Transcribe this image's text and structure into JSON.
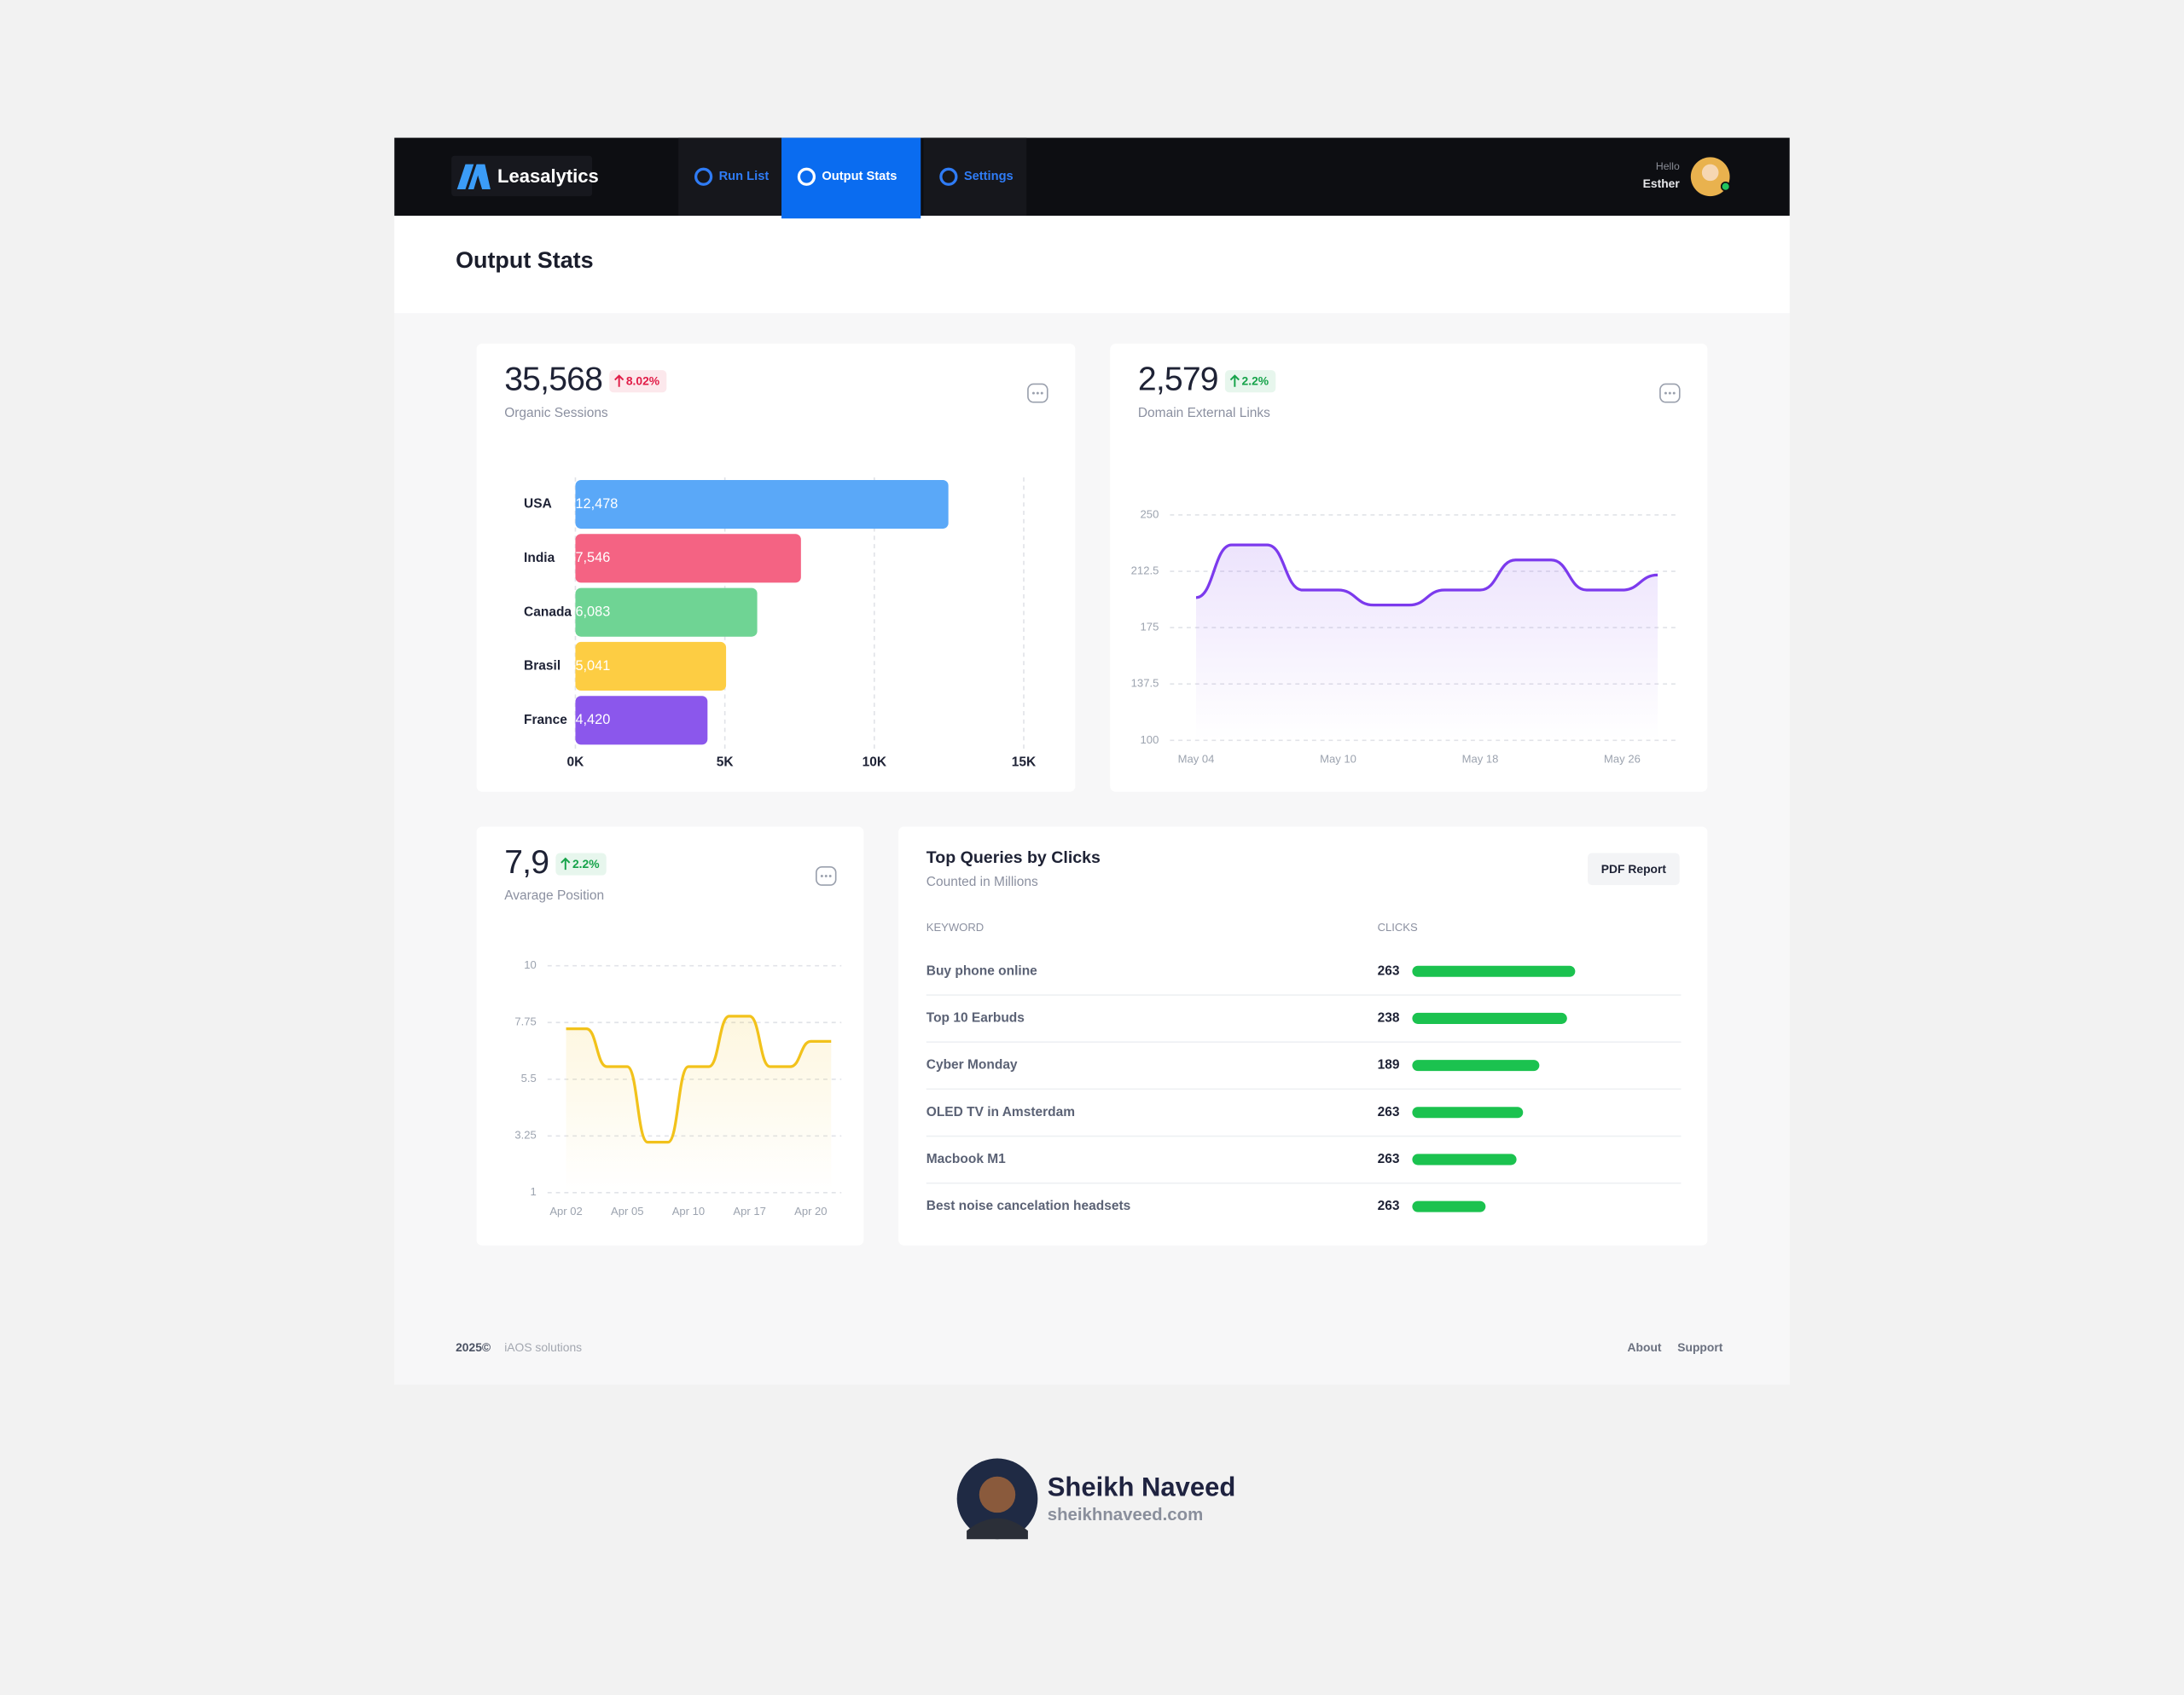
{
  "header": {
    "brand": "Leasalytics",
    "nav": [
      {
        "label": "Run List",
        "active": false
      },
      {
        "label": "Output Stats",
        "active": true
      },
      {
        "label": "Settings",
        "active": false
      }
    ],
    "greeting": "Hello",
    "user": "Esther"
  },
  "page_title": "Output Stats",
  "chart_data": [
    {
      "type": "bar",
      "orientation": "horizontal",
      "metric": "35,568",
      "change": "8.02%",
      "badge_color": "#e11d48",
      "subtitle": "Organic Sessions",
      "categories": [
        "USA",
        "India",
        "Canada",
        "Brasil",
        "France"
      ],
      "values": [
        12478,
        7546,
        6083,
        5041,
        4420
      ],
      "value_labels": [
        "12,478",
        "7,546",
        "6,083",
        "5,041",
        "4,420"
      ],
      "colors": [
        "#5aa8f8",
        "#f46383",
        "#6fd494",
        "#fdcd43",
        "#8b57ec"
      ],
      "xlim": [
        0,
        15000
      ],
      "xticks": [
        {
          "value": 0,
          "label": "0K"
        },
        {
          "value": 5000,
          "label": "5K"
        },
        {
          "value": 10000,
          "label": "10K"
        },
        {
          "value": 15000,
          "label": "15K"
        }
      ],
      "grid": true
    },
    {
      "type": "line",
      "metric": "2,579",
      "change": "2.2%",
      "badge_color": "#16a34a",
      "subtitle": "Domain External Links",
      "categories": [
        "May 04",
        null,
        null,
        null,
        "May 10",
        null,
        null,
        null,
        "May 18",
        null,
        null,
        null,
        "May 26",
        null
      ],
      "values": [
        195,
        230,
        230,
        200,
        200,
        190,
        190,
        200,
        200,
        220,
        220,
        200,
        200,
        210
      ],
      "color": "#7c3aed",
      "ylim": [
        100,
        250
      ],
      "yticks": [
        100,
        137.5,
        175,
        212.5,
        250
      ],
      "grid": true
    },
    {
      "type": "line",
      "metric": "7,9",
      "change": "2.2%",
      "badge_color": "#16a34a",
      "subtitle": "Avarage Position",
      "categories": [
        "Apr 02",
        null,
        null,
        "Apr 05",
        null,
        null,
        "Apr 10",
        null,
        null,
        "Apr 17",
        null,
        null,
        "Apr 20",
        null
      ],
      "values": [
        7.5,
        7.5,
        6,
        6,
        3,
        3,
        6,
        6,
        8,
        8,
        6,
        6,
        7,
        7
      ],
      "color": "#f2c21b",
      "ylim": [
        1,
        10
      ],
      "yticks": [
        1,
        3.25,
        5.5,
        7.75,
        10
      ],
      "grid": true
    }
  ],
  "queries": {
    "title": "Top Queries by Clicks",
    "subtitle": "Counted in Millions",
    "button": "PDF Report",
    "columns": [
      "KEYWORD",
      "CLICKS"
    ],
    "bar_color": "#1bc24f",
    "rows": [
      {
        "keyword": "Buy phone online",
        "clicks": 263,
        "bar": 100
      },
      {
        "keyword": "Top 10 Earbuds",
        "clicks": 238,
        "bar": 95
      },
      {
        "keyword": "Cyber Monday",
        "clicks": 189,
        "bar": 78
      },
      {
        "keyword": "OLED TV in Amsterdam",
        "clicks": 263,
        "bar": 68
      },
      {
        "keyword": "Macbook M1",
        "clicks": 263,
        "bar": 64
      },
      {
        "keyword": "Best noise cancelation headsets",
        "clicks": 263,
        "bar": 45
      }
    ]
  },
  "footer": {
    "year": "2025©",
    "company": "iAOS solutions",
    "links": [
      "About",
      "Support"
    ]
  },
  "credit": {
    "name": "Sheikh Naveed",
    "site": "sheikhnaveed.com"
  }
}
